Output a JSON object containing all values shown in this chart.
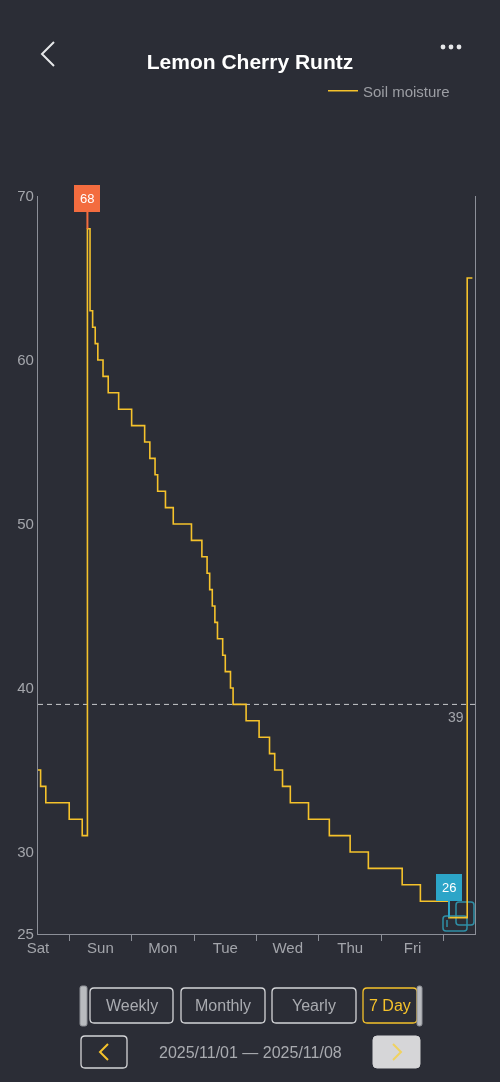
{
  "chart_data": {
    "type": "step",
    "title": "Lemon Cherry Runtz",
    "legend": "top right",
    "categories": [
      "Sat",
      null,
      null,
      null,
      null,
      null,
      null,
      null,
      null,
      null,
      null,
      null,
      null,
      null,
      null,
      null,
      null,
      null,
      null,
      null,
      null,
      null,
      null,
      null,
      "Sun",
      null,
      null,
      null,
      null,
      null,
      null,
      null,
      null,
      null,
      null,
      null,
      null,
      null,
      null,
      null,
      null,
      null,
      null,
      null,
      null,
      null,
      null,
      null,
      "Mon",
      null,
      null,
      null,
      null,
      null,
      null,
      null,
      null,
      null,
      null,
      null,
      null,
      null,
      null,
      null,
      null,
      null,
      null,
      null,
      null,
      null,
      null,
      null,
      "Tue",
      null,
      null,
      null,
      null,
      null,
      null,
      null,
      null,
      null,
      null,
      null,
      null,
      null,
      null,
      null,
      null,
      null,
      null,
      null,
      null,
      null,
      null,
      null,
      "Wed",
      null,
      null,
      null,
      null,
      null,
      null,
      null,
      null,
      null,
      null,
      null,
      null,
      null,
      null,
      null,
      null,
      null,
      null,
      null,
      null,
      null,
      null,
      null,
      "Thu",
      null,
      null,
      null,
      null,
      null,
      null,
      null,
      null,
      null,
      null,
      null,
      null,
      null,
      null,
      null,
      null,
      null,
      null,
      null,
      null,
      null,
      null,
      null,
      "Fri",
      null,
      null,
      null,
      null,
      null,
      null,
      null,
      null,
      null,
      null,
      null,
      null,
      null,
      null,
      null,
      null,
      null,
      null,
      null,
      null,
      null,
      null,
      null
    ],
    "series": [
      {
        "name": "Soil moisture",
        "color": "#f5c22b",
        "values": [
          35,
          34,
          34,
          33,
          33,
          33,
          33,
          33,
          33,
          33,
          33,
          33,
          32,
          32,
          32,
          32,
          32,
          31,
          31,
          68,
          63,
          62,
          61,
          60,
          60,
          59,
          59,
          58,
          58,
          58,
          58,
          57,
          57,
          57,
          57,
          57,
          56,
          56,
          56,
          56,
          56,
          55,
          55,
          54,
          54,
          53,
          52,
          52,
          52,
          51,
          51,
          51,
          50,
          50,
          50,
          50,
          50,
          50,
          50,
          49,
          49,
          49,
          49,
          48,
          48,
          47,
          46,
          45,
          44,
          43,
          43,
          42,
          41,
          41,
          40,
          39,
          39,
          39,
          39,
          39,
          38,
          38,
          38,
          38,
          38,
          37,
          37,
          37,
          37,
          36,
          36,
          35,
          35,
          35,
          34,
          34,
          34,
          33,
          33,
          33,
          33,
          33,
          33,
          33,
          32,
          32,
          32,
          32,
          32,
          32,
          32,
          32,
          31,
          31,
          31,
          31,
          31,
          31,
          31,
          31,
          30,
          30,
          30,
          30,
          30,
          30,
          30,
          29,
          29,
          29,
          29,
          29,
          29,
          29,
          29,
          29,
          29,
          29,
          29,
          29,
          28,
          28,
          28,
          28,
          28,
          28,
          28,
          27,
          27,
          27,
          27,
          27,
          27,
          27,
          27,
          27,
          27,
          27,
          26,
          26,
          26,
          26,
          26,
          26,
          26,
          65,
          65,
          65
        ]
      }
    ],
    "ylim": [
      25,
      70
    ],
    "yticks": [
      25,
      30,
      40,
      50,
      60,
      70
    ],
    "ref_lines": [
      {
        "axis": "y",
        "value": 39,
        "label": "39",
        "color": "#c9cacd",
        "line_style": "dashed"
      }
    ],
    "annotations": [
      {
        "text": "68",
        "y": 68
      },
      {
        "text": "26",
        "y": 26
      },
      "Weekly",
      "Monthly",
      "Yearly",
      "7 Day",
      "2025/11/01 — 2025/11/08"
    ]
  }
}
